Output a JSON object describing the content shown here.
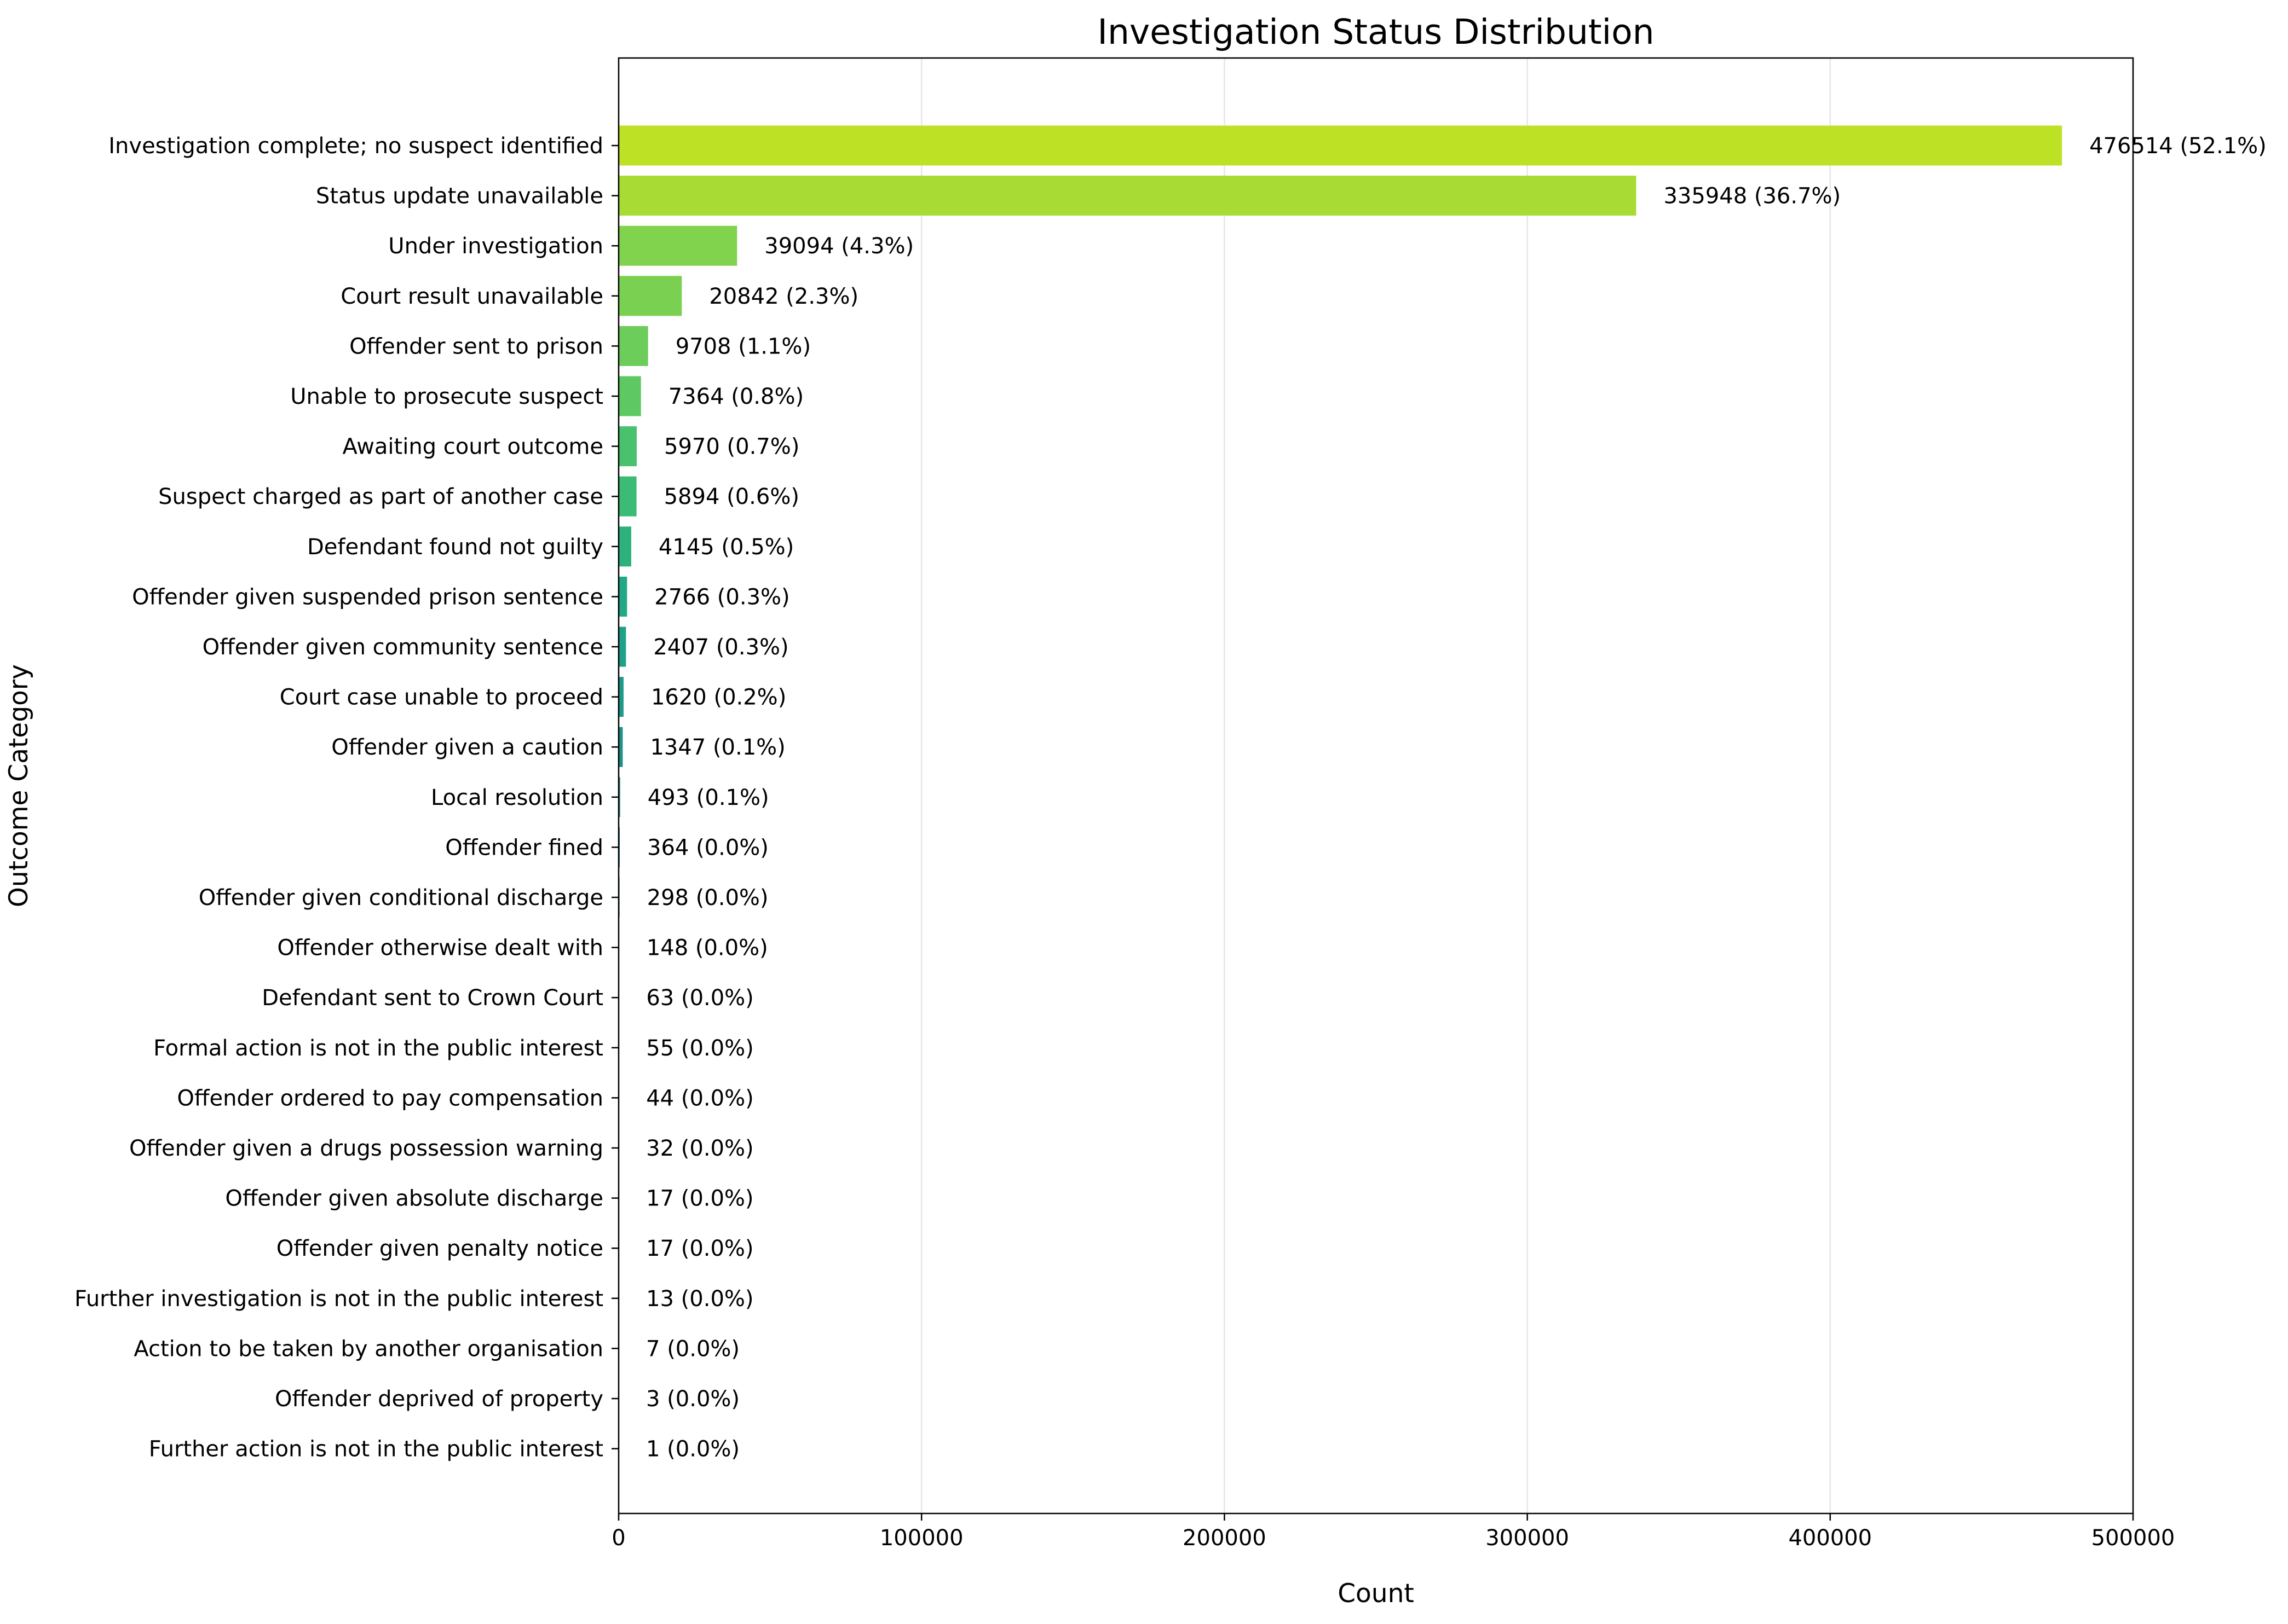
{
  "chart_data": {
    "type": "bar",
    "orientation": "horizontal",
    "title": "Investigation Status Distribution",
    "xlabel": "Count",
    "ylabel": "Outcome Category",
    "xlim": [
      0,
      500000
    ],
    "xticks": [
      "0",
      "100000",
      "200000",
      "300000",
      "400000",
      "500000"
    ],
    "grid": "vertical",
    "categories": [
      "Investigation complete; no suspect identified",
      "Status update unavailable",
      "Under investigation",
      "Court result unavailable",
      "Offender sent to prison",
      "Unable to prosecute suspect",
      "Awaiting court outcome",
      "Suspect charged as part of another case",
      "Defendant found not guilty",
      "Offender given suspended prison sentence",
      "Offender given community sentence",
      "Court case unable to proceed",
      "Offender given a caution",
      "Local resolution",
      "Offender fined",
      "Offender given conditional discharge",
      "Offender otherwise dealt with",
      "Defendant sent to Crown Court",
      "Formal action is not in the public interest",
      "Offender ordered to pay compensation",
      "Offender given a drugs possession warning",
      "Offender given absolute discharge",
      "Offender given penalty notice",
      "Further investigation is not in the public interest",
      "Action to be taken by another organisation",
      "Offender deprived of property",
      "Further action is not in the public interest"
    ],
    "values": [
      476514,
      335948,
      39094,
      20842,
      9708,
      7364,
      5970,
      5894,
      4145,
      2766,
      2407,
      1620,
      1347,
      493,
      364,
      298,
      148,
      63,
      55,
      44,
      32,
      17,
      17,
      13,
      7,
      3,
      1
    ],
    "data_labels": [
      "476514 (52.1%)",
      "335948 (36.7%)",
      "39094 (4.3%)",
      "20842 (2.3%)",
      "9708 (1.1%)",
      "7364 (0.8%)",
      "5970 (0.7%)",
      "5894 (0.6%)",
      "4145 (0.5%)",
      "2766 (0.3%)",
      "2407 (0.3%)",
      "1620 (0.2%)",
      "1347 (0.1%)",
      "493 (0.1%)",
      "364 (0.0%)",
      "298 (0.0%)",
      "148 (0.0%)",
      "63 (0.0%)",
      "55 (0.0%)",
      "44 (0.0%)",
      "32 (0.0%)",
      "17 (0.0%)",
      "17 (0.0%)",
      "13 (0.0%)",
      "7 (0.0%)",
      "3 (0.0%)",
      "1 (0.0%)"
    ],
    "colors": [
      "#bde125",
      "#a8db34",
      "#81d34d",
      "#7ad151",
      "#6ccd5a",
      "#5ec962",
      "#4ac16d",
      "#3bbb75",
      "#2db27d",
      "#22a884",
      "#1fa088",
      "#1f9a8a",
      "#21918c",
      "#23898e",
      "#26818e",
      "#287c8e",
      "#2a788e",
      "#2c728e",
      "#2f6c8e",
      "#31668e",
      "#33638d",
      "#365c8d",
      "#39568c",
      "#3b528b",
      "#3e4989",
      "#424086",
      "#453882"
    ]
  }
}
